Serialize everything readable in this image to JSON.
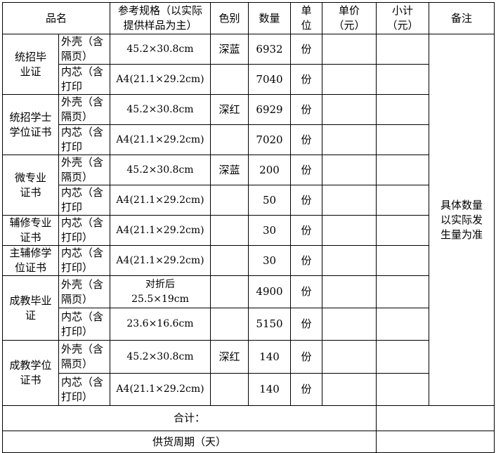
{
  "header": {
    "name": "品名",
    "spec": "参考规格（以实际\n提供样品为主）",
    "color": "色别",
    "qty": "数量",
    "unit": "单\n位",
    "price": "单价\n（元）",
    "subtotal": "小计\n（元）",
    "remark": "备注"
  },
  "groups": [
    {
      "name": "统招毕\n业证",
      "parts": [
        {
          "part": "外壳（含\n隔页）",
          "spec": "45.2×30.8cm",
          "color": "深蓝",
          "qty": "6932",
          "unit": "份",
          "price": "",
          "subtotal": ""
        },
        {
          "part": "内芯（含\n打印",
          "spec": "A4(21.1×29.2cm)",
          "color": "",
          "qty": "7040",
          "unit": "份",
          "price": "",
          "subtotal": ""
        }
      ]
    },
    {
      "name": "统招学士\n学位证书",
      "parts": [
        {
          "part": "外壳（含\n隔页）",
          "spec": "45.2×30.8cm",
          "color": "深红",
          "qty": "6929",
          "unit": "份",
          "price": "",
          "subtotal": ""
        },
        {
          "part": "内芯（含\n打印",
          "spec": "A4(21.1×29.2cm)",
          "color": "",
          "qty": "7020",
          "unit": "份",
          "price": "",
          "subtotal": ""
        }
      ]
    },
    {
      "name": "微专业\n证书",
      "parts": [
        {
          "part": "外壳（含\n隔页）",
          "spec": "45.2×30.8cm",
          "color": "深蓝",
          "qty": "200",
          "unit": "份",
          "price": "",
          "subtotal": ""
        },
        {
          "part": "内芯（含\n打印",
          "spec": "A4(21.1×29.2cm)",
          "color": "",
          "qty": "50",
          "unit": "份",
          "price": "",
          "subtotal": ""
        }
      ]
    },
    {
      "name": "辅修专业\n证书",
      "parts": [
        {
          "part": "内芯（含\n打印）",
          "spec": "A4(21.1×29.2cm)",
          "color": "",
          "qty": "30",
          "unit": "份",
          "price": "",
          "subtotal": ""
        }
      ]
    },
    {
      "name": "主辅修学\n位证书",
      "parts": [
        {
          "part": "内芯（含\n打印）",
          "spec": "A4(21.1×29.2cm)",
          "color": "",
          "qty": "30",
          "unit": "份",
          "price": "",
          "subtotal": ""
        }
      ]
    },
    {
      "name": "成教毕业\n证",
      "parts": [
        {
          "part": "外壳（含\n隔页）",
          "spec": "对折后\n25.5×19cm",
          "color": "",
          "qty": "4900",
          "unit": "份",
          "price": "",
          "subtotal": ""
        },
        {
          "part": "内芯（含\n打印）",
          "spec": "23.6×16.6cm",
          "color": "",
          "qty": "5150",
          "unit": "份",
          "price": "",
          "subtotal": ""
        }
      ]
    },
    {
      "name": "成教学位\n证书",
      "parts": [
        {
          "part": "外壳（含\n隔页）",
          "spec": "45.2×30.8cm",
          "color": "深红",
          "qty": "140",
          "unit": "份",
          "price": "",
          "subtotal": ""
        },
        {
          "part": "内芯（含\n打印）",
          "spec": "A4(21.1×29.2cm)",
          "color": "",
          "qty": "140",
          "unit": "份",
          "price": "",
          "subtotal": ""
        }
      ]
    }
  ],
  "remark": "具体数量\n以实际发\n生量为准",
  "footer": {
    "total_label": "合计：",
    "total_value": "",
    "supply_label": "供货周期（天）",
    "supply_value": ""
  }
}
